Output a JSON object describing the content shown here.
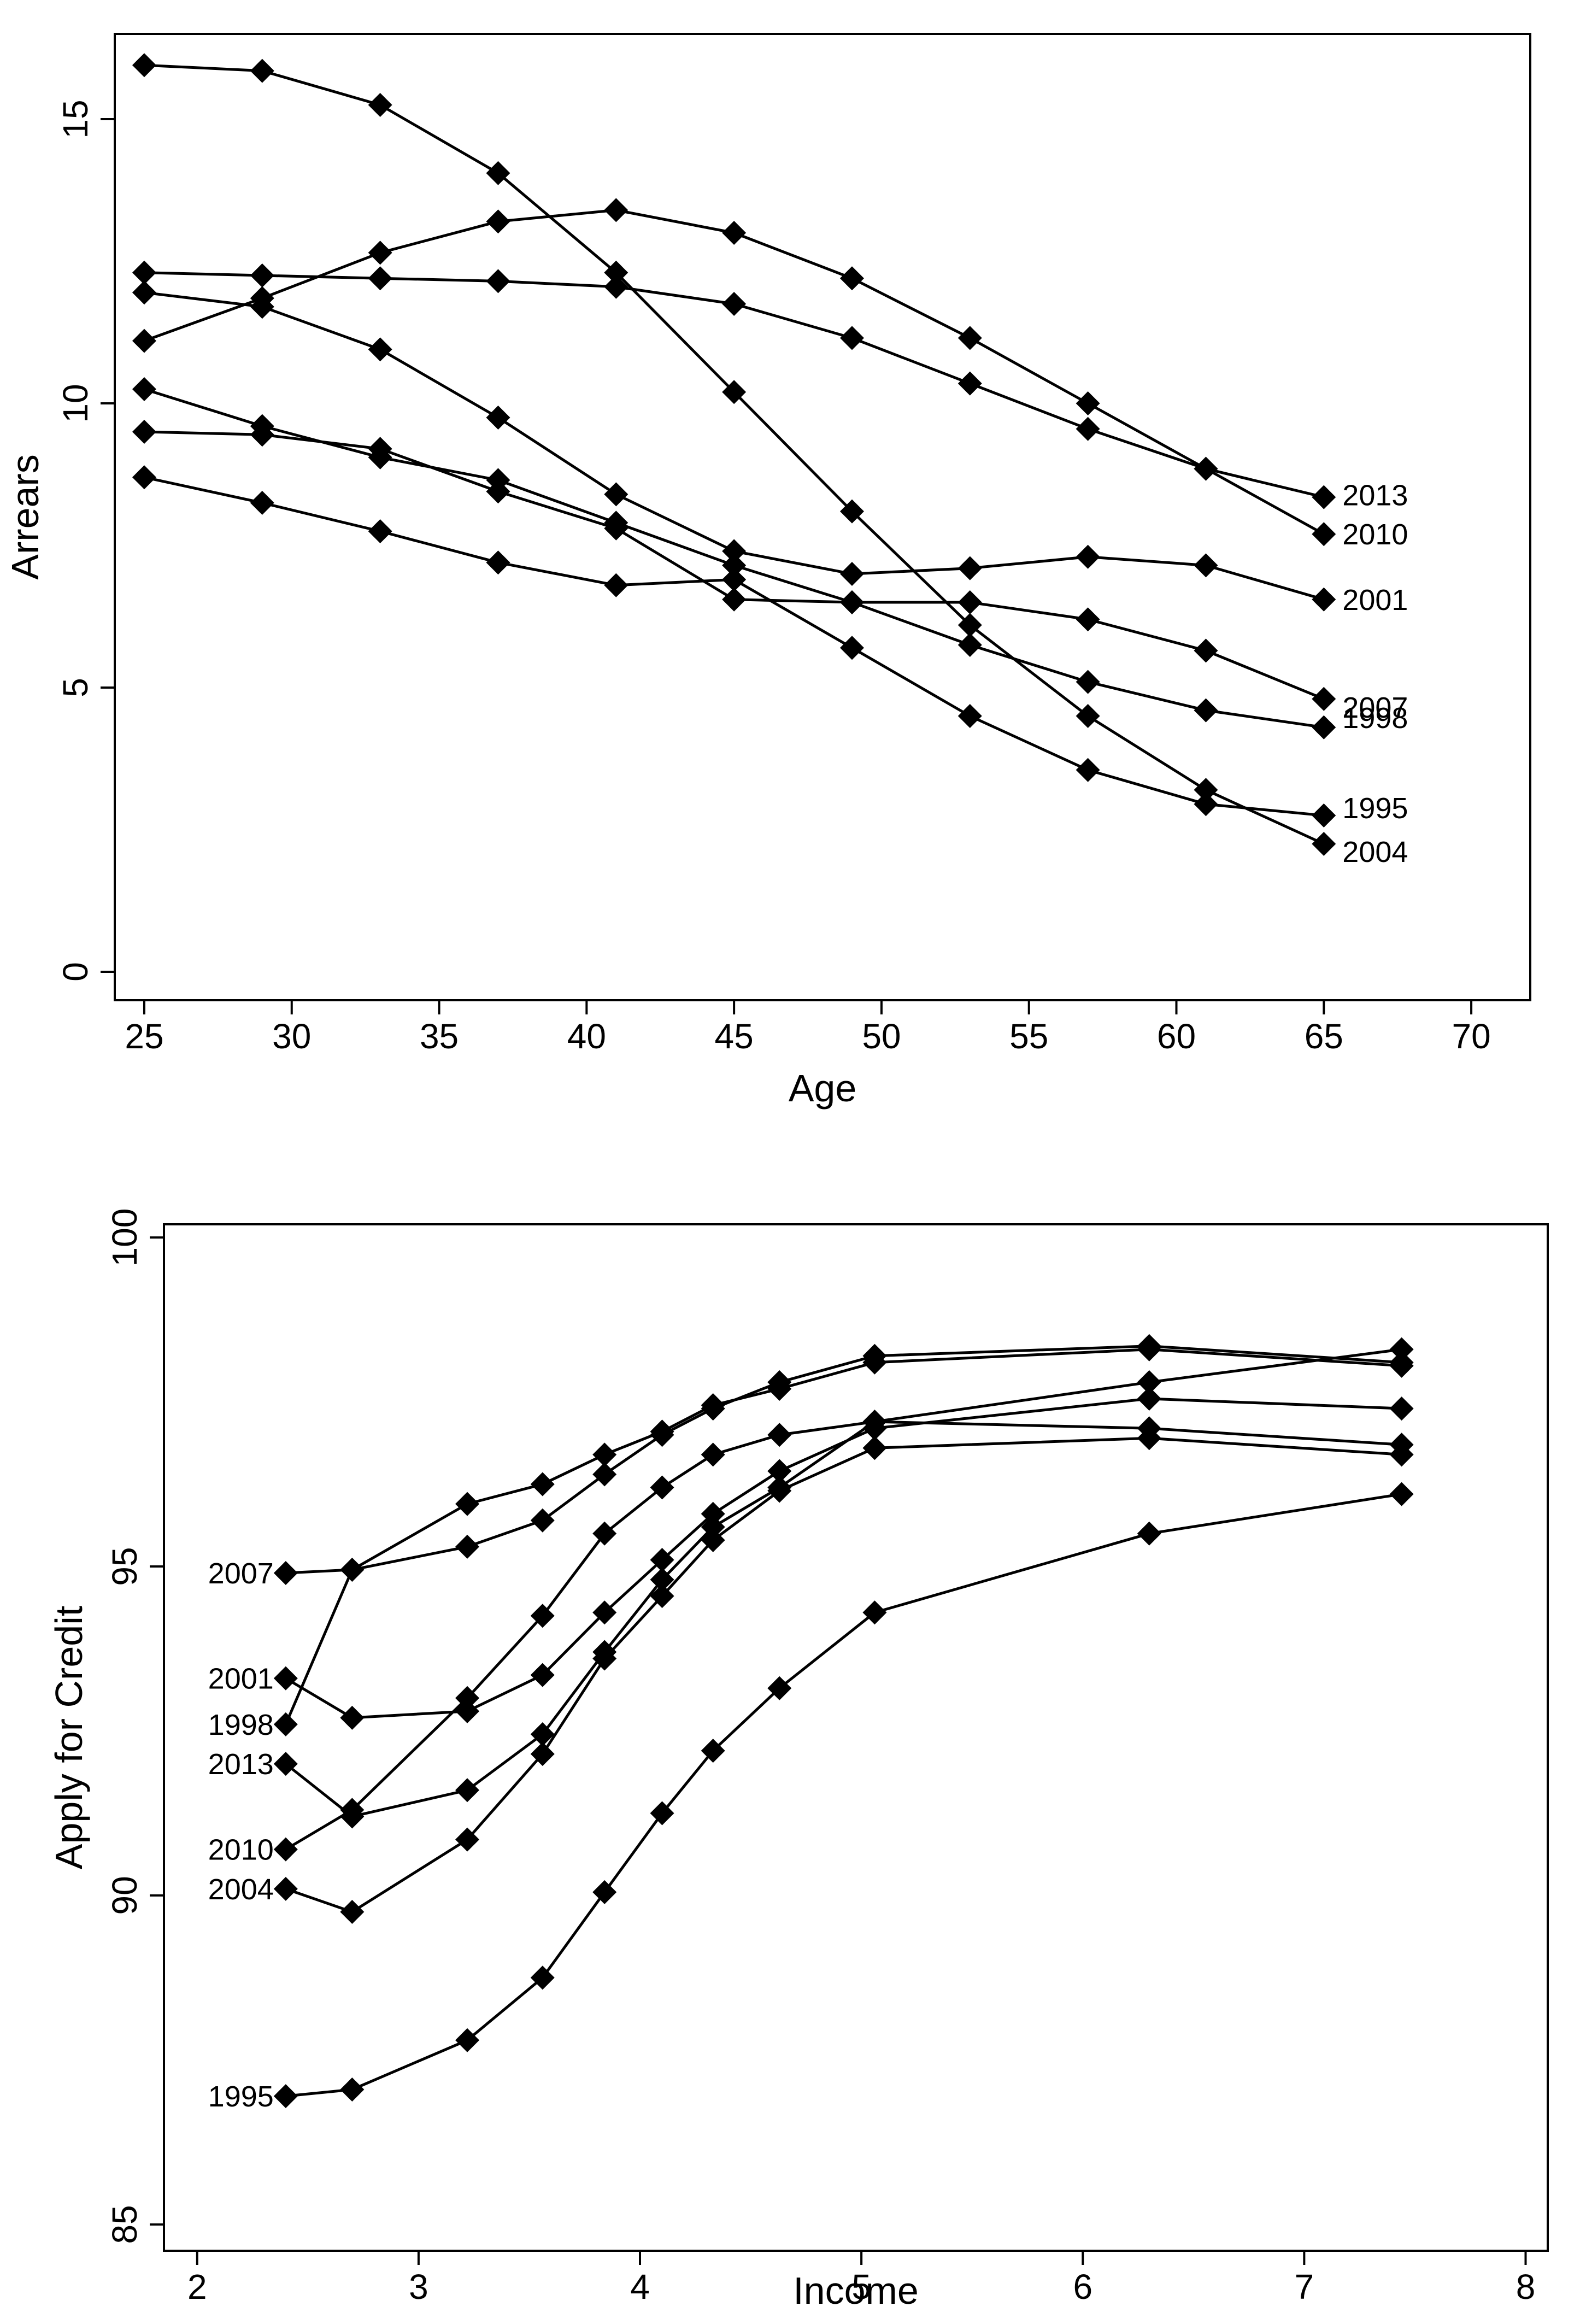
{
  "chart_data": [
    {
      "type": "line",
      "title": "",
      "xlabel": "Age",
      "ylabel": "Arrears",
      "xlim": [
        24,
        72
      ],
      "ylim": [
        -0.5,
        16.5
      ],
      "xticks": [
        25,
        30,
        35,
        40,
        45,
        50,
        55,
        60,
        65,
        70
      ],
      "yticks": [
        0,
        5,
        10,
        15
      ],
      "grid": false,
      "legend": "none",
      "label_position": "right-end",
      "marker": "diamond",
      "x": [
        25,
        29,
        33,
        37,
        41,
        45,
        49,
        53,
        57,
        61,
        65
      ],
      "series": [
        {
          "name": "2013",
          "values": [
            12.3,
            12.25,
            12.2,
            12.15,
            12.05,
            11.75,
            11.15,
            10.35,
            9.55,
            8.85,
            8.35
          ]
        },
        {
          "name": "2010",
          "values": [
            11.1,
            11.85,
            12.65,
            13.2,
            13.4,
            13.0,
            12.2,
            11.15,
            10.0,
            8.85,
            7.7
          ]
        },
        {
          "name": "2001",
          "values": [
            11.95,
            11.7,
            10.95,
            9.75,
            8.4,
            7.4,
            7.0,
            7.1,
            7.3,
            7.15,
            6.55
          ]
        },
        {
          "name": "1998",
          "values": [
            10.25,
            9.6,
            9.05,
            8.65,
            7.9,
            7.15,
            6.5,
            5.75,
            5.1,
            4.6,
            4.3
          ]
        },
        {
          "name": "2007",
          "values": [
            9.5,
            9.45,
            9.2,
            8.45,
            7.8,
            6.55,
            6.5,
            6.5,
            6.2,
            5.65,
            4.8
          ]
        },
        {
          "name": "1995",
          "values": [
            8.7,
            8.25,
            7.75,
            7.2,
            6.8,
            6.9,
            5.7,
            4.5,
            3.55,
            2.95,
            2.75
          ]
        },
        {
          "name": "2004",
          "values": [
            15.95,
            15.85,
            15.25,
            14.05,
            12.3,
            10.2,
            8.1,
            6.1,
            4.5,
            3.2,
            2.25
          ]
        }
      ]
    },
    {
      "type": "line",
      "title": "",
      "xlabel": "Income",
      "ylabel": "Apply for Credit",
      "xlim": [
        1.85,
        8.1
      ],
      "ylim": [
        84.6,
        100.2
      ],
      "xticks": [
        2,
        3,
        4,
        5,
        6,
        7,
        8
      ],
      "yticks": [
        85,
        90,
        95,
        100
      ],
      "grid": false,
      "legend": "none",
      "label_position": "left-start",
      "marker": "diamond",
      "x": [
        2.4,
        2.7,
        3.22,
        3.56,
        3.84,
        4.1,
        4.33,
        4.63,
        5.06,
        6.3,
        7.44
      ],
      "series": [
        {
          "name": "2007",
          "values": [
            94.9,
            94.95,
            95.3,
            95.7,
            96.4,
            97.0,
            97.4,
            97.8,
            98.2,
            98.35,
            98.1
          ]
        },
        {
          "name": "2001",
          "values": [
            93.3,
            92.7,
            92.8,
            93.35,
            94.3,
            95.1,
            95.8,
            96.45,
            97.1,
            97.55,
            97.4
          ]
        },
        {
          "name": "1998",
          "values": [
            92.6,
            94.95,
            95.95,
            96.25,
            96.7,
            97.05,
            97.45,
            97.7,
            98.1,
            98.3,
            98.05
          ]
        },
        {
          "name": "2013",
          "values": [
            92.0,
            91.2,
            91.6,
            92.45,
            93.7,
            94.8,
            95.6,
            96.2,
            97.2,
            97.1,
            96.85
          ]
        },
        {
          "name": "2010",
          "values": [
            90.7,
            91.3,
            93.0,
            94.25,
            95.5,
            96.2,
            96.7,
            97.0,
            97.2,
            97.8,
            98.3
          ]
        },
        {
          "name": "2004",
          "values": [
            90.1,
            89.75,
            90.85,
            92.15,
            93.6,
            94.55,
            95.4,
            96.15,
            96.8,
            96.95,
            96.7
          ]
        },
        {
          "name": "1995",
          "values": [
            86.95,
            87.05,
            87.8,
            88.75,
            90.05,
            91.25,
            92.2,
            93.15,
            94.3,
            95.5,
            96.1
          ]
        }
      ]
    }
  ]
}
